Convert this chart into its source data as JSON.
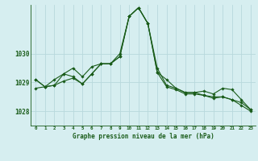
{
  "title": "Graphe pression niveau de la mer (hPa)",
  "x_labels": [
    "0",
    "1",
    "2",
    "3",
    "4",
    "5",
    "6",
    "7",
    "8",
    "9",
    "10",
    "11",
    "12",
    "13",
    "14",
    "15",
    "16",
    "17",
    "18",
    "19",
    "20",
    "21",
    "22",
    "23"
  ],
  "xlim": [
    -0.5,
    23.5
  ],
  "ylim": [
    1027.5,
    1031.7
  ],
  "yticks": [
    1028,
    1029,
    1030
  ],
  "background_color": "#d6eef0",
  "grid_color": "#b8d8dc",
  "line_color": "#1a5c1a",
  "series1": [
    1028.8,
    1028.85,
    1028.9,
    1029.05,
    1029.15,
    1028.95,
    1029.3,
    1029.65,
    1029.65,
    1030.0,
    1031.3,
    1031.6,
    1031.05,
    1029.35,
    1028.85,
    1028.75,
    1028.6,
    1028.6,
    1028.55,
    1028.5,
    1028.5,
    1028.4,
    1028.2,
    1028.0
  ],
  "series2": [
    1029.1,
    1028.85,
    1028.9,
    1029.3,
    1029.2,
    1028.95,
    1029.3,
    1029.65,
    1029.65,
    1029.9,
    1031.3,
    1031.6,
    1031.05,
    1029.35,
    1029.1,
    1028.8,
    1028.65,
    1028.65,
    1028.7,
    1028.6,
    1028.8,
    1028.75,
    1028.4,
    1028.05
  ],
  "series3": [
    1029.1,
    1028.85,
    1029.1,
    1029.3,
    1029.5,
    1029.2,
    1029.55,
    1029.65,
    1029.65,
    1029.9,
    1031.3,
    1031.6,
    1031.05,
    1029.5,
    1028.9,
    1028.8,
    1028.65,
    1028.65,
    1028.55,
    1028.45,
    1028.5,
    1028.4,
    1028.3,
    1028.05
  ]
}
